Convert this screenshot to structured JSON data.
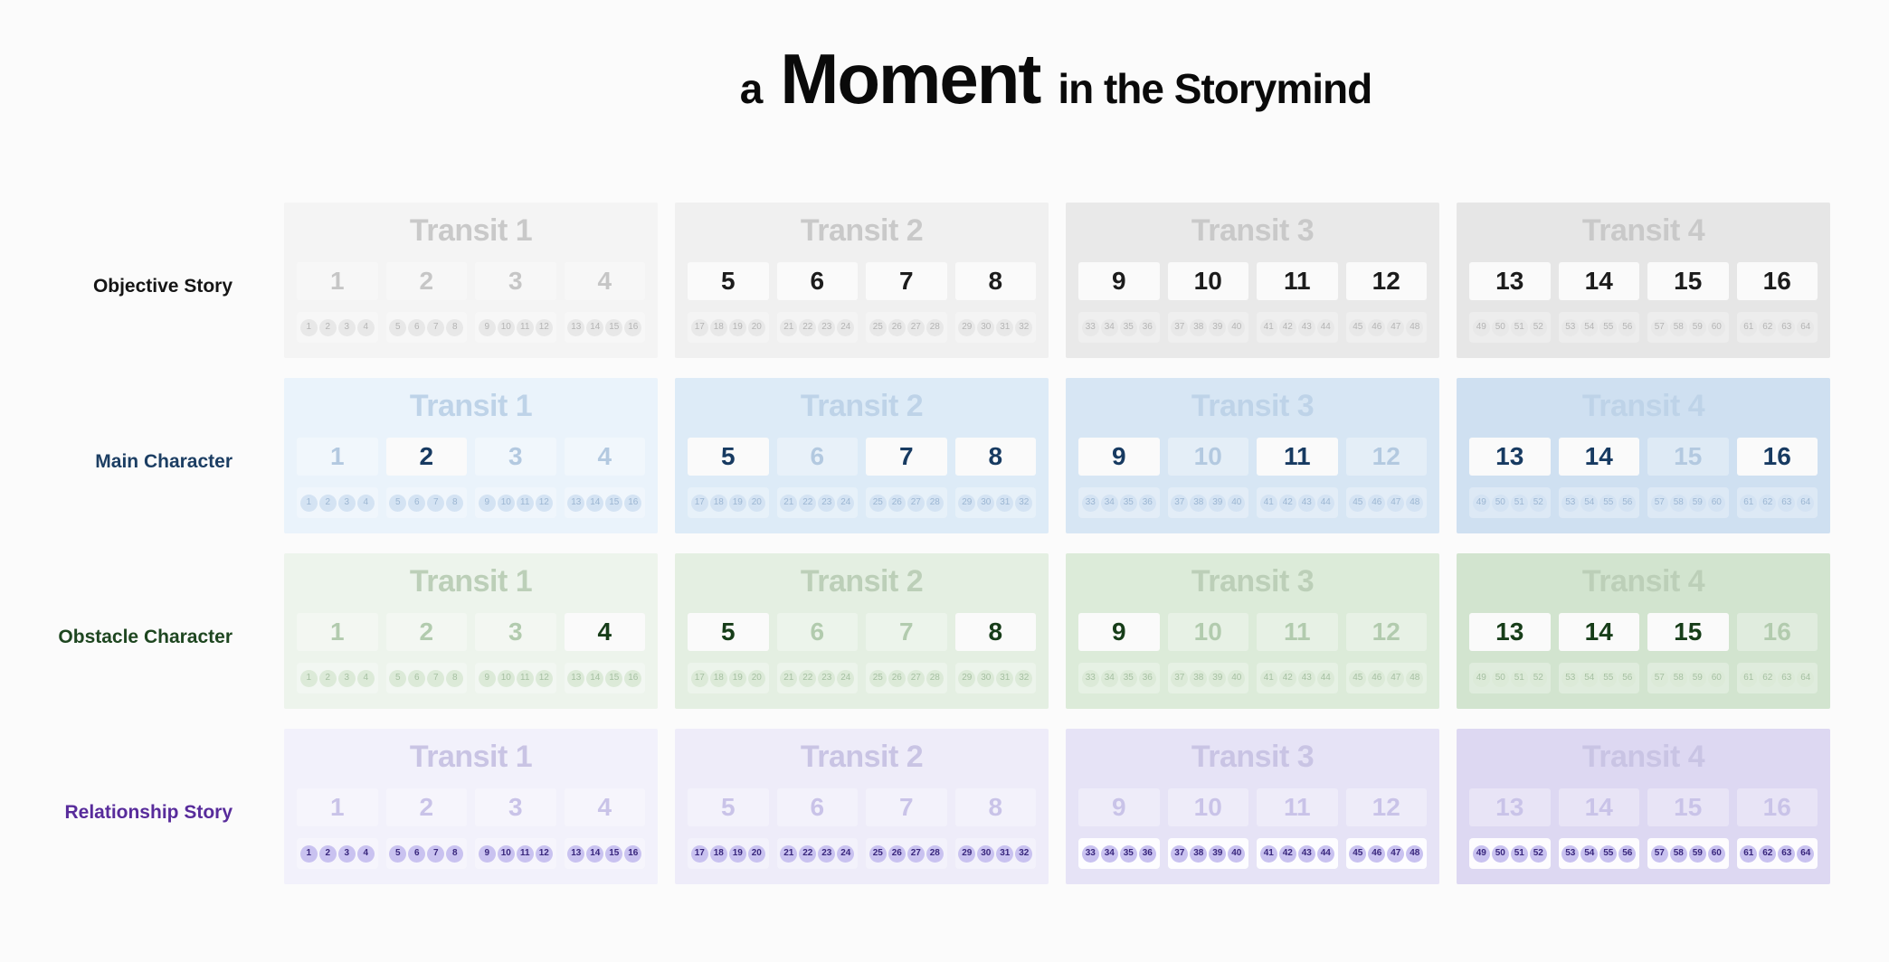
{
  "title": {
    "prefix": "a",
    "emphasis": "Moment",
    "suffix": "in the Storymind"
  },
  "transit_headers": [
    "Transit 1",
    "Transit 2",
    "Transit 3",
    "Transit 4"
  ],
  "numbers": [
    [
      1,
      2,
      3,
      4
    ],
    [
      5,
      6,
      7,
      8
    ],
    [
      9,
      10,
      11,
      12
    ],
    [
      13,
      14,
      15,
      16
    ]
  ],
  "chip_groups": [
    [
      [
        1,
        2,
        3,
        4
      ],
      [
        5,
        6,
        7,
        8
      ],
      [
        9,
        10,
        11,
        12
      ],
      [
        13,
        14,
        15,
        16
      ]
    ],
    [
      [
        17,
        18,
        19,
        20
      ],
      [
        21,
        22,
        23,
        24
      ],
      [
        25,
        26,
        27,
        28
      ],
      [
        29,
        30,
        31,
        32
      ]
    ],
    [
      [
        33,
        34,
        35,
        36
      ],
      [
        37,
        38,
        39,
        40
      ],
      [
        41,
        42,
        43,
        44
      ],
      [
        45,
        46,
        47,
        48
      ]
    ],
    [
      [
        49,
        50,
        51,
        52
      ],
      [
        53,
        54,
        55,
        56
      ],
      [
        57,
        58,
        59,
        60
      ],
      [
        61,
        62,
        63,
        64
      ]
    ]
  ],
  "rows": [
    {
      "id": "objective-story",
      "label": "Objective Story",
      "colors": {
        "label": "#151515",
        "active_text": "#1c1c1c",
        "inactive_text": "#c6c6c6",
        "header": "#c9c9c9",
        "chip_bg": "#e8e8e8",
        "chip_text": "#b4b4b4",
        "cell_bg": [
          "#f4f4f4",
          "#f0f0f0",
          "#e9e9e9",
          "#e6e6e6"
        ]
      },
      "active_numbers": [
        [],
        [
          5,
          6,
          7,
          8
        ],
        [
          9,
          10,
          11,
          12
        ],
        [
          13,
          14,
          15,
          16
        ]
      ],
      "chips_active": false,
      "chip_strip_highlight": [
        false,
        false,
        false,
        false
      ]
    },
    {
      "id": "main-character",
      "label": "Main Character",
      "colors": {
        "label": "#1c3e63",
        "active_text": "#173a61",
        "inactive_text": "#b3c9e0",
        "header": "#bed3e8",
        "chip_bg": "#d4e3f3",
        "chip_text": "#9cb6d2",
        "cell_bg": [
          "#eaf3fb",
          "#ddebf7",
          "#d7e6f4",
          "#cfe0f1"
        ]
      },
      "active_numbers": [
        [
          2
        ],
        [
          5,
          7,
          8
        ],
        [
          9,
          11
        ],
        [
          13,
          14,
          16
        ]
      ],
      "chips_active": false,
      "chip_strip_highlight": [
        false,
        false,
        false,
        false
      ]
    },
    {
      "id": "obstacle-character",
      "label": "Obstacle Character",
      "colors": {
        "label": "#1e4620",
        "active_text": "#173d19",
        "inactive_text": "#b2cbae",
        "header": "#bccfb8",
        "chip_bg": "#dcead8",
        "chip_text": "#a6c0a2",
        "cell_bg": [
          "#edf4ec",
          "#e4efe2",
          "#dcebd9",
          "#d2e4cf"
        ]
      },
      "active_numbers": [
        [
          4
        ],
        [
          5,
          8
        ],
        [
          9
        ],
        [
          13,
          14,
          15
        ]
      ],
      "chips_active": false,
      "chip_strip_highlight": [
        false,
        false,
        false,
        false
      ]
    },
    {
      "id": "relationship-story",
      "label": "Relationship Story",
      "colors": {
        "label": "#582c9b",
        "active_text": "#3c2a80",
        "inactive_text": "#c9c3e8",
        "header": "#c9c4e4",
        "chip_bg": "#c9c2f0",
        "chip_text": "#38267c",
        "cell_bg": [
          "#f2f1fb",
          "#eeecf9",
          "#e6e3f6",
          "#ddd8f2"
        ]
      },
      "active_numbers": [
        [],
        [],
        [],
        []
      ],
      "chips_active": true,
      "chip_strip_highlight": [
        false,
        false,
        true,
        true
      ]
    }
  ]
}
